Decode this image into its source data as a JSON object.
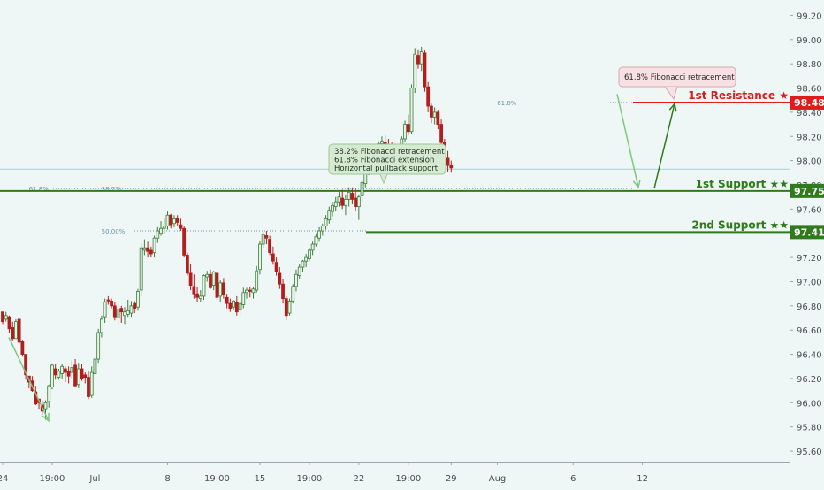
{
  "chart_data": {
    "type": "candlestick",
    "colors": {
      "background": "#eef7f6",
      "up": "#3b7d3b",
      "down": "#b51d1d",
      "support": "#2f7a1c",
      "resistance": "#e01b1b",
      "fib_text": "#6a92b5",
      "callout_green_bg": "#d6ead2",
      "callout_pink_bg": "#f8e1e4",
      "arrow_light_green": "#7dc77b",
      "arrow_dark_green": "#2f7a1c",
      "current_price_line": "#a7cfd6"
    },
    "y_axis": {
      "ticks": [
        "99.20",
        "99.00",
        "98.80",
        "98.60",
        "98.40",
        "98.20",
        "98.00",
        "97.80",
        "97.60",
        "97.40",
        "97.20",
        "97.00",
        "96.80",
        "96.60",
        "96.40",
        "96.20",
        "96.00",
        "95.80",
        "95.60"
      ],
      "range": [
        95.52,
        99.32
      ]
    },
    "x_axis": {
      "labels": [
        {
          "text": "24",
          "day": 0
        },
        {
          "text": "19:00",
          "day": 1.5
        },
        {
          "text": "Jul",
          "day": 2.8
        },
        {
          "text": "8",
          "day": 5.0
        },
        {
          "text": "19:00",
          "day": 6.5
        },
        {
          "text": "15",
          "day": 7.8
        },
        {
          "text": "19:00",
          "day": 9.3
        },
        {
          "text": "22",
          "day": 10.8
        },
        {
          "text": "19:00",
          "day": 12.3
        },
        {
          "text": "29",
          "day": 13.6
        },
        {
          "text": "Aug",
          "day": 15.0
        },
        {
          "text": "6",
          "day": 17.3
        },
        {
          "text": "12",
          "day": 19.4
        }
      ]
    },
    "levels": [
      {
        "label": "1st Resistance ★",
        "price": 98.48,
        "price_label": "98.48",
        "kind": "resistance"
      },
      {
        "label": "1st Support ★★",
        "price": 97.75,
        "price_label": "97.75",
        "kind": "support"
      },
      {
        "label": "2nd Support ★★",
        "price": 97.41,
        "price_label": "97.41",
        "kind": "support"
      }
    ],
    "fib_labels": [
      {
        "text": "61.8%",
        "price": 97.77,
        "day": 0.9
      },
      {
        "text": "38.2%",
        "price": 97.77,
        "day": 3.1
      },
      {
        "text": "50.00%",
        "price": 97.42,
        "day": 3.1
      },
      {
        "text": "61.8%",
        "price": 98.48,
        "day": 15.1
      }
    ],
    "annotations": {
      "green_box": [
        "38.2% Fibonacci retracement",
        "61.8% Fibonacci extension",
        "Horizontal pullback support"
      ],
      "pink_box": "61.8% Fibonacci retracement"
    },
    "current_price": 97.93,
    "candles": [
      [
        0.0,
        96.75,
        96.75,
        96.65,
        96.67
      ],
      [
        0.1,
        96.69,
        96.75,
        96.67,
        96.72
      ],
      [
        0.2,
        96.71,
        96.72,
        96.58,
        96.61
      ],
      [
        0.3,
        96.62,
        96.67,
        96.51,
        96.53
      ],
      [
        0.4,
        96.53,
        96.69,
        96.53,
        96.67
      ],
      [
        0.5,
        96.69,
        96.69,
        96.49,
        96.5
      ],
      [
        0.6,
        96.51,
        96.52,
        96.38,
        96.4
      ],
      [
        0.7,
        96.4,
        96.4,
        96.19,
        96.23
      ],
      [
        0.8,
        96.22,
        96.22,
        96.12,
        96.17
      ],
      [
        0.9,
        96.18,
        96.22,
        96.09,
        96.1
      ],
      [
        1.0,
        96.09,
        96.14,
        95.98,
        95.99
      ],
      [
        1.1,
        96.03,
        96.03,
        95.95,
        96.0
      ],
      [
        1.2,
        95.98,
        96.02,
        95.9,
        95.93
      ],
      [
        1.3,
        95.95,
        96.02,
        95.86,
        96.0
      ],
      [
        1.4,
        96.01,
        96.15,
        95.96,
        96.14
      ],
      [
        1.5,
        96.13,
        96.32,
        96.11,
        96.31
      ],
      [
        1.6,
        96.28,
        96.32,
        96.19,
        96.23
      ],
      [
        1.7,
        96.21,
        96.28,
        96.19,
        96.26
      ],
      [
        1.8,
        96.24,
        96.32,
        96.2,
        96.3
      ],
      [
        1.9,
        96.28,
        96.3,
        96.17,
        96.25
      ],
      [
        2.0,
        96.26,
        96.3,
        96.16,
        96.22
      ],
      [
        2.1,
        96.25,
        96.35,
        96.2,
        96.29
      ],
      [
        2.2,
        96.31,
        96.36,
        96.13,
        96.14
      ],
      [
        2.3,
        96.15,
        96.33,
        96.12,
        96.28
      ],
      [
        2.4,
        96.28,
        96.32,
        96.18,
        96.2
      ],
      [
        2.5,
        96.23,
        96.25,
        96.16,
        96.21
      ],
      [
        2.6,
        96.21,
        96.26,
        96.03,
        96.05
      ],
      [
        2.7,
        96.06,
        96.3,
        96.04,
        96.25
      ],
      [
        2.8,
        96.24,
        96.39,
        96.22,
        96.36
      ],
      [
        2.9,
        96.36,
        96.61,
        96.33,
        96.58
      ],
      [
        3.0,
        96.58,
        96.72,
        96.54,
        96.69
      ],
      [
        3.1,
        96.71,
        96.86,
        96.66,
        96.83
      ],
      [
        3.2,
        96.85,
        96.88,
        96.81,
        96.84
      ],
      [
        3.3,
        96.84,
        96.86,
        96.78,
        96.8
      ],
      [
        3.4,
        96.8,
        96.83,
        96.68,
        96.71
      ],
      [
        3.5,
        96.7,
        96.82,
        96.64,
        96.77
      ],
      [
        3.6,
        96.78,
        96.8,
        96.66,
        96.75
      ],
      [
        3.7,
        96.72,
        96.79,
        96.65,
        96.75
      ],
      [
        3.8,
        96.73,
        96.85,
        96.71,
        96.76
      ],
      [
        3.9,
        96.74,
        96.84,
        96.71,
        96.8
      ],
      [
        4.0,
        96.82,
        96.84,
        96.74,
        96.78
      ],
      [
        4.1,
        96.79,
        96.94,
        96.76,
        96.92
      ],
      [
        4.2,
        96.93,
        97.32,
        96.88,
        97.28
      ],
      [
        4.3,
        97.26,
        97.35,
        97.22,
        97.28
      ],
      [
        4.4,
        97.28,
        97.33,
        97.2,
        97.25
      ],
      [
        4.5,
        97.26,
        97.29,
        97.2,
        97.23
      ],
      [
        4.6,
        97.24,
        97.38,
        97.2,
        97.36
      ],
      [
        4.7,
        97.36,
        97.45,
        97.32,
        97.42
      ],
      [
        4.8,
        97.4,
        97.5,
        97.38,
        97.44
      ],
      [
        4.9,
        97.44,
        97.52,
        97.4,
        97.46
      ],
      [
        5.0,
        97.46,
        97.58,
        97.43,
        97.55
      ],
      [
        5.1,
        97.55,
        97.56,
        97.44,
        97.47
      ],
      [
        5.2,
        97.48,
        97.55,
        97.45,
        97.52
      ],
      [
        5.3,
        97.52,
        97.55,
        97.46,
        97.49
      ],
      [
        5.4,
        97.47,
        97.52,
        97.42,
        97.44
      ],
      [
        5.5,
        97.44,
        97.46,
        97.2,
        97.22
      ],
      [
        5.6,
        97.22,
        97.24,
        97.05,
        97.07
      ],
      [
        5.7,
        97.07,
        97.15,
        96.93,
        96.97
      ],
      [
        5.8,
        96.96,
        97.06,
        96.86,
        96.9
      ],
      [
        5.9,
        96.9,
        96.96,
        96.83,
        96.87
      ],
      [
        6.0,
        96.86,
        96.93,
        96.83,
        96.88
      ],
      [
        6.1,
        96.88,
        97.06,
        96.85,
        97.05
      ],
      [
        6.2,
        97.04,
        97.09,
        97.0,
        97.06
      ],
      [
        6.3,
        97.06,
        97.1,
        96.94,
        96.95
      ],
      [
        6.4,
        96.97,
        97.09,
        96.93,
        97.08
      ],
      [
        6.5,
        97.07,
        97.09,
        96.85,
        96.87
      ],
      [
        6.6,
        96.88,
        97.01,
        96.83,
        96.99
      ],
      [
        6.7,
        96.99,
        97.03,
        96.86,
        96.89
      ],
      [
        6.8,
        96.87,
        96.9,
        96.78,
        96.82
      ],
      [
        6.9,
        96.82,
        96.86,
        96.75,
        96.78
      ],
      [
        7.0,
        96.79,
        96.85,
        96.77,
        96.84
      ],
      [
        7.1,
        96.83,
        96.88,
        96.72,
        96.75
      ],
      [
        7.2,
        96.77,
        96.85,
        96.73,
        96.82
      ],
      [
        7.3,
        96.81,
        96.95,
        96.78,
        96.91
      ],
      [
        7.4,
        96.91,
        96.95,
        96.86,
        96.93
      ],
      [
        7.5,
        96.93,
        96.96,
        96.87,
        96.92
      ],
      [
        7.6,
        96.91,
        96.96,
        96.86,
        96.94
      ],
      [
        7.7,
        96.93,
        97.13,
        96.91,
        97.09
      ],
      [
        7.8,
        97.1,
        97.34,
        97.06,
        97.31
      ],
      [
        7.9,
        97.31,
        97.41,
        97.28,
        97.39
      ],
      [
        8.0,
        97.38,
        97.42,
        97.31,
        97.36
      ],
      [
        8.1,
        97.35,
        97.38,
        97.22,
        97.24
      ],
      [
        8.2,
        97.23,
        97.29,
        97.14,
        97.17
      ],
      [
        8.3,
        97.16,
        97.2,
        97.05,
        97.08
      ],
      [
        8.4,
        97.07,
        97.12,
        96.94,
        96.98
      ],
      [
        8.5,
        96.98,
        97.02,
        96.82,
        96.86
      ],
      [
        8.6,
        96.86,
        96.88,
        96.68,
        96.72
      ],
      [
        8.7,
        96.74,
        96.86,
        96.72,
        96.84
      ],
      [
        8.8,
        96.84,
        96.98,
        96.82,
        96.96
      ],
      [
        8.9,
        96.96,
        97.1,
        96.92,
        97.06
      ],
      [
        9.0,
        97.05,
        97.15,
        97.02,
        97.12
      ],
      [
        9.1,
        97.12,
        97.18,
        97.08,
        97.17
      ],
      [
        9.2,
        97.17,
        97.23,
        97.12,
        97.2
      ],
      [
        9.3,
        97.19,
        97.28,
        97.17,
        97.26
      ],
      [
        9.4,
        97.26,
        97.33,
        97.22,
        97.31
      ],
      [
        9.5,
        97.31,
        97.4,
        97.29,
        97.37
      ],
      [
        9.6,
        97.36,
        97.45,
        97.33,
        97.42
      ],
      [
        9.7,
        97.42,
        97.48,
        97.38,
        97.46
      ],
      [
        9.8,
        97.46,
        97.55,
        97.43,
        97.52
      ],
      [
        9.9,
        97.51,
        97.62,
        97.48,
        97.59
      ],
      [
        10.0,
        97.58,
        97.66,
        97.54,
        97.63
      ],
      [
        10.1,
        97.62,
        97.7,
        97.58,
        97.66
      ],
      [
        10.2,
        97.66,
        97.74,
        97.62,
        97.7
      ],
      [
        10.3,
        97.69,
        97.76,
        97.6,
        97.63
      ],
      [
        10.4,
        97.63,
        97.72,
        97.55,
        97.68
      ],
      [
        10.5,
        97.68,
        97.78,
        97.62,
        97.74
      ],
      [
        10.6,
        97.73,
        97.78,
        97.64,
        97.68
      ],
      [
        10.7,
        97.69,
        97.77,
        97.58,
        97.62
      ],
      [
        10.8,
        97.62,
        97.72,
        97.51,
        97.7
      ],
      [
        10.9,
        97.71,
        97.84,
        97.66,
        97.82
      ],
      [
        11.0,
        97.81,
        97.96,
        97.78,
        97.93
      ],
      [
        11.1,
        97.93,
        98.02,
        97.88,
        97.97
      ],
      [
        11.2,
        97.97,
        98.09,
        97.93,
        98.06
      ],
      [
        11.3,
        98.05,
        98.13,
        98.0,
        98.1
      ],
      [
        11.4,
        98.1,
        98.16,
        98.05,
        98.14
      ],
      [
        11.5,
        98.14,
        98.2,
        98.08,
        98.16
      ],
      [
        11.6,
        98.15,
        98.21,
        98.09,
        98.12
      ],
      [
        11.7,
        98.13,
        98.18,
        98.06,
        98.1
      ],
      [
        11.8,
        98.1,
        98.15,
        98.03,
        98.07
      ],
      [
        11.9,
        98.07,
        98.12,
        98.01,
        98.05
      ],
      [
        12.0,
        98.05,
        98.1,
        98.0,
        98.03
      ],
      [
        12.1,
        98.04,
        98.2,
        98.02,
        98.18
      ],
      [
        12.2,
        98.18,
        98.33,
        98.15,
        98.3
      ],
      [
        12.3,
        98.3,
        98.38,
        98.21,
        98.24
      ],
      [
        12.4,
        98.24,
        98.63,
        98.22,
        98.6
      ],
      [
        12.5,
        98.6,
        98.93,
        98.56,
        98.88
      ],
      [
        12.6,
        98.87,
        98.92,
        98.76,
        98.8
      ],
      [
        12.7,
        98.8,
        98.94,
        98.74,
        98.9
      ],
      [
        12.8,
        98.89,
        98.91,
        98.57,
        98.61
      ],
      [
        12.9,
        98.61,
        98.65,
        98.4,
        98.45
      ],
      [
        13.0,
        98.45,
        98.48,
        98.31,
        98.36
      ],
      [
        13.1,
        98.36,
        98.44,
        98.3,
        98.4
      ],
      [
        13.2,
        98.4,
        98.42,
        98.26,
        98.3
      ],
      [
        13.3,
        98.3,
        98.34,
        98.12,
        98.15
      ],
      [
        13.4,
        98.15,
        98.18,
        97.99,
        98.02
      ],
      [
        13.5,
        98.02,
        98.08,
        97.91,
        97.96
      ],
      [
        13.6,
        97.96,
        98.0,
        97.9,
        97.94
      ]
    ]
  }
}
